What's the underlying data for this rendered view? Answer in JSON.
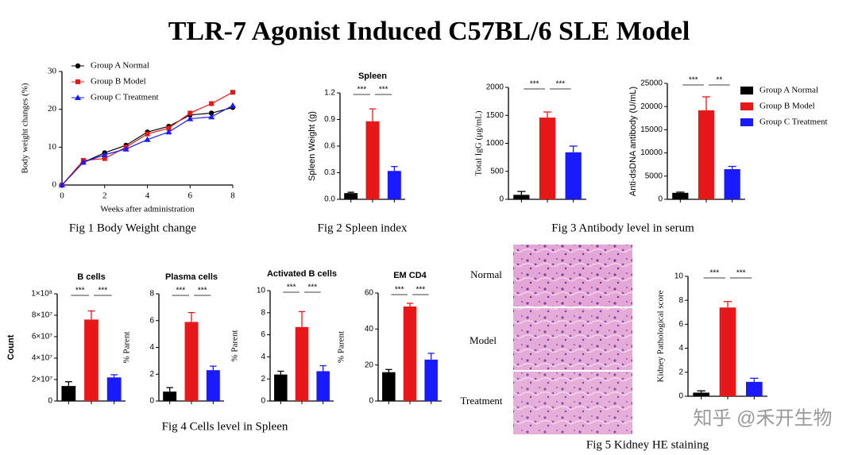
{
  "title": "TLR-7 Agonist Induced C57BL/6 SLE Model",
  "captions": [
    "Fig 1 Body Weight change",
    "Fig 2 Spleen index",
    "Fig 3 Antibody level in serum",
    "Fig 4 Cells level in Spleen",
    "Fig 5 Kidney HE staining"
  ],
  "histology": {
    "labels": [
      "Normal",
      "Model",
      "Treatment"
    ]
  },
  "watermark": "知乎 @禾开生物",
  "chart_data": [
    {
      "type": "line",
      "ylabel": "Body weight changes (%)",
      "xlabel": "Weeks after administration",
      "x": [
        0,
        1,
        2,
        3,
        4,
        5,
        6,
        7,
        8
      ],
      "xlim": [
        0,
        8
      ],
      "xticks": [
        0,
        2,
        4,
        6,
        8
      ],
      "ylim": [
        0,
        30
      ],
      "yticks": [
        0,
        10,
        20,
        30
      ],
      "legend": "upper left",
      "series": [
        {
          "name": "Group A Normal",
          "color": "#000000",
          "marker": "circle",
          "values": [
            0,
            6,
            8.5,
            10.5,
            14,
            15.5,
            18.5,
            19,
            20.5
          ]
        },
        {
          "name": "Group B Model",
          "color": "#e81818",
          "marker": "square",
          "values": [
            0,
            6.5,
            7,
            10,
            13.5,
            15,
            19,
            21.5,
            24.5
          ]
        },
        {
          "name": "Group C Treatment",
          "color": "#1a1aff",
          "marker": "triangle",
          "values": [
            0,
            6,
            8,
            9.5,
            12,
            14,
            17.5,
            18,
            21
          ]
        }
      ]
    },
    {
      "type": "bar",
      "title": "Spleen",
      "ylabel": "Spleen Weight (g)",
      "categories": [
        null,
        null,
        null
      ],
      "values": [
        0.07,
        0.88,
        0.32
      ],
      "errors": [
        0.01,
        0.14,
        0.05
      ],
      "colors": [
        "#000000",
        "#e81818",
        "#1a1aff"
      ],
      "ylim": [
        0,
        1.2
      ],
      "yticks": [
        {
          "value": 0,
          "label": "0.0"
        },
        0.3,
        0.6,
        0.9,
        1.2
      ],
      "significance": [
        "***",
        "***"
      ]
    },
    {
      "type": "bar",
      "ylabel": "Total IgG (μg/mL)",
      "categories": [
        null,
        null,
        null
      ],
      "values": [
        80,
        1460,
        840
      ],
      "errors": [
        60,
        100,
        110
      ],
      "colors": [
        "#000000",
        "#e81818",
        "#1a1aff"
      ],
      "ylim": [
        0,
        2000
      ],
      "yticks": [
        0,
        500,
        1000,
        1500,
        2000
      ],
      "significance": [
        "***",
        "***"
      ]
    },
    {
      "type": "bar",
      "ylabel": "Anti-dsDNA antibody (U/mL)",
      "categories": [
        null,
        null,
        null
      ],
      "values": [
        1400,
        19200,
        6500
      ],
      "errors": [
        150,
        2900,
        600
      ],
      "colors": [
        "#000000",
        "#e81818",
        "#1a1aff"
      ],
      "ylim": [
        0,
        25000
      ],
      "yticks": [
        0,
        5000,
        10000,
        15000,
        20000,
        25000
      ],
      "significance": [
        "***",
        "**"
      ],
      "legend": [
        {
          "name": "Group A Normal",
          "color": "#000000"
        },
        {
          "name": "Group B Model",
          "color": "#e81818"
        },
        {
          "name": "Group C Treatment",
          "color": "#1a1aff"
        }
      ]
    },
    {
      "type": "bar",
      "title": "B cells",
      "ylabel": "Count",
      "categories": [
        null,
        null,
        null
      ],
      "values": [
        14000000,
        76000000,
        22000000
      ],
      "errors": [
        4000000,
        8000000,
        2500000
      ],
      "colors": [
        "#000000",
        "#e81818",
        "#1a1aff"
      ],
      "ylim": [
        0,
        100000000
      ],
      "yticks": [
        0,
        {
          "value": 20000000,
          "label": "2×10⁷"
        },
        {
          "value": 40000000,
          "label": "4×10⁷"
        },
        {
          "value": 60000000,
          "label": "6×10⁷"
        },
        {
          "value": 80000000,
          "label": "8×10⁷"
        },
        {
          "value": 100000000,
          "label": "1×10⁸"
        }
      ],
      "significance": [
        "***",
        "***"
      ]
    },
    {
      "type": "bar",
      "title": "Plasma cells",
      "ylabel": "% Parent",
      "categories": [
        null,
        null,
        null
      ],
      "values": [
        0.7,
        5.9,
        2.3
      ],
      "errors": [
        0.3,
        0.7,
        0.3
      ],
      "colors": [
        "#000000",
        "#e81818",
        "#1a1aff"
      ],
      "ylim": [
        0,
        8
      ],
      "yticks": [
        0,
        2,
        4,
        6,
        8
      ],
      "significance": [
        "***",
        "***"
      ]
    },
    {
      "type": "bar",
      "title": "Activated B cells",
      "ylabel": "% Parent",
      "categories": [
        null,
        null,
        null
      ],
      "values": [
        2.4,
        6.7,
        2.7
      ],
      "errors": [
        0.3,
        1.4,
        0.5
      ],
      "colors": [
        "#000000",
        "#e81818",
        "#1a1aff"
      ],
      "ylim": [
        0,
        10
      ],
      "yticks": [
        0,
        2,
        4,
        6,
        8,
        10
      ],
      "significance": [
        "***",
        "***"
      ]
    },
    {
      "type": "bar",
      "title": "EM CD4",
      "ylabel": "% Parent",
      "categories": [
        null,
        null,
        null
      ],
      "values": [
        16,
        52.5,
        23
      ],
      "errors": [
        1.5,
        1.8,
        3.5
      ],
      "colors": [
        "#000000",
        "#e81818",
        "#1a1aff"
      ],
      "ylim": [
        0,
        60
      ],
      "yticks": [
        0,
        20,
        40,
        60
      ],
      "significance": [
        "***",
        "***"
      ]
    },
    {
      "type": "bar",
      "ylabel": "Kidney Pathological score",
      "categories": [
        null,
        null,
        null
      ],
      "values": [
        0.3,
        7.4,
        1.2
      ],
      "errors": [
        0.15,
        0.5,
        0.3
      ],
      "colors": [
        "#000000",
        "#e81818",
        "#1a1aff"
      ],
      "ylim": [
        0,
        10
      ],
      "yticks": [
        0,
        2,
        4,
        6,
        8,
        10
      ],
      "significance": [
        "***",
        "***"
      ]
    }
  ]
}
